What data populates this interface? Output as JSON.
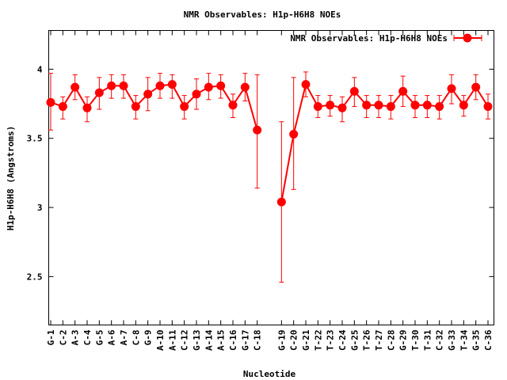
{
  "chart_data": {
    "type": "line",
    "title": "NMR Observables: H1p-H6H8 NOEs",
    "xlabel": "Nucleotide",
    "ylabel": "H1p-H6H8 (Angstroms)",
    "ylim": [
      2.15,
      4.28
    ],
    "yticks": [
      2.5,
      3,
      3.5,
      4
    ],
    "ytick_labels": [
      "2.5",
      "3",
      "3.5",
      "4"
    ],
    "grid": false,
    "legend_position": "top-right",
    "series_color": "#ff0000",
    "series": [
      {
        "name": "NMR Observables: H1p-H6H8 NOEs",
        "segments": [
          {
            "categories": [
              "G-1",
              "C-2",
              "A-3",
              "C-4",
              "G-5",
              "A-6",
              "A-7",
              "C-8",
              "G-9",
              "A-10",
              "A-11",
              "C-12",
              "G-13",
              "A-14",
              "A-15",
              "C-16",
              "G-17",
              "C-18"
            ],
            "values": [
              3.76,
              3.73,
              3.87,
              3.72,
              3.83,
              3.88,
              3.88,
              3.73,
              3.82,
              3.88,
              3.89,
              3.73,
              3.82,
              3.87,
              3.88,
              3.74,
              3.87,
              3.56
            ],
            "err_low": [
              3.56,
              3.64,
              3.78,
              3.62,
              3.71,
              3.79,
              3.79,
              3.64,
              3.7,
              3.79,
              3.79,
              3.64,
              3.71,
              3.78,
              3.79,
              3.65,
              3.77,
              3.14
            ],
            "err_high": [
              3.97,
              3.8,
              3.96,
              3.8,
              3.94,
              3.96,
              3.96,
              3.81,
              3.94,
              3.97,
              3.96,
              3.81,
              3.93,
              3.97,
              3.96,
              3.82,
              3.97,
              3.96
            ]
          },
          {
            "categories": [
              "G-19",
              "C-20",
              "G-21",
              "T-22",
              "T-23",
              "C-24",
              "G-25",
              "T-26",
              "T-27",
              "C-28",
              "G-29",
              "T-30",
              "T-31",
              "C-32",
              "G-33",
              "T-34",
              "G-35",
              "C-36"
            ],
            "values": [
              3.04,
              3.53,
              3.89,
              3.73,
              3.74,
              3.72,
              3.84,
              3.74,
              3.74,
              3.73,
              3.84,
              3.74,
              3.74,
              3.73,
              3.86,
              3.74,
              3.87,
              3.73
            ],
            "err_low": [
              2.46,
              3.13,
              3.8,
              3.65,
              3.66,
              3.62,
              3.73,
              3.65,
              3.65,
              3.64,
              3.73,
              3.65,
              3.65,
              3.64,
              3.75,
              3.66,
              3.78,
              3.64
            ],
            "err_high": [
              3.62,
              3.94,
              3.98,
              3.81,
              3.81,
              3.8,
              3.94,
              3.81,
              3.81,
              3.81,
              3.95,
              3.81,
              3.81,
              3.81,
              3.96,
              3.81,
              3.96,
              3.82
            ]
          }
        ]
      }
    ]
  }
}
